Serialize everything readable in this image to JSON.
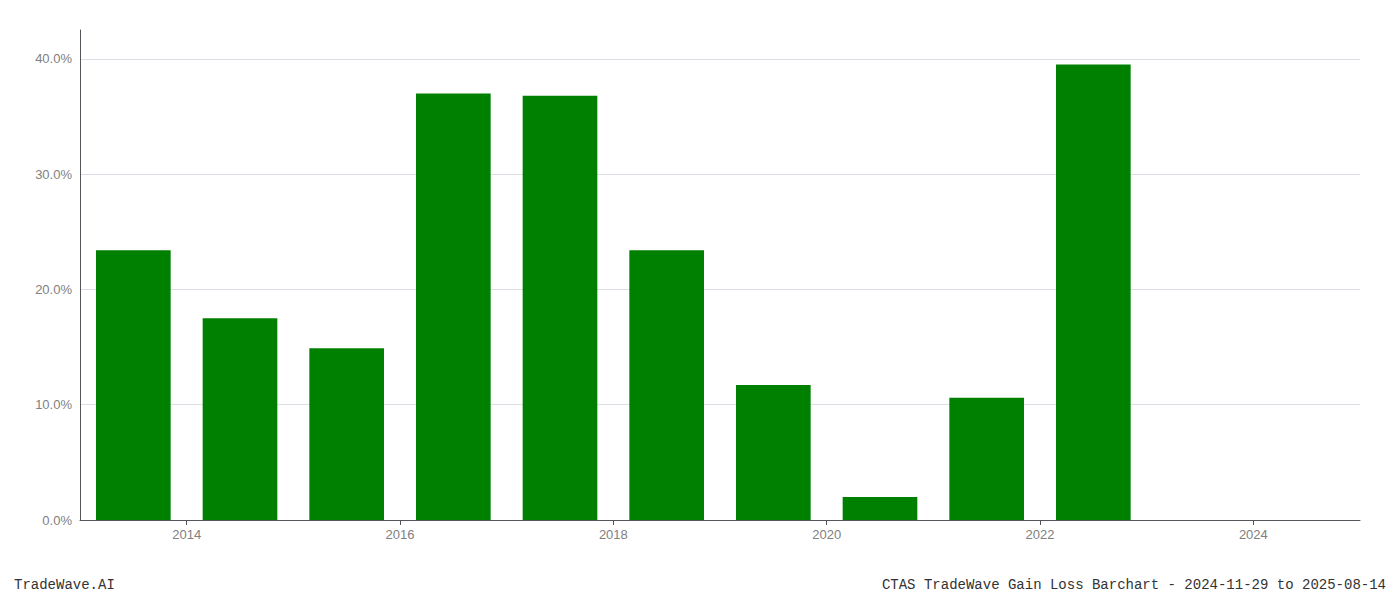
{
  "chart_data": {
    "type": "bar",
    "x": [
      2013.5,
      2014.5,
      2015.5,
      2016.5,
      2017.5,
      2018.5,
      2019.5,
      2020.5,
      2021.5,
      2022.5,
      2023.5
    ],
    "values": [
      0.234,
      0.175,
      0.149,
      0.37,
      0.368,
      0.234,
      0.117,
      0.02,
      0.106,
      0.395,
      0.0
    ],
    "color": "#008000",
    "xlim": [
      2013.0,
      2025.0
    ],
    "xticks": [
      2014,
      2016,
      2018,
      2020,
      2022,
      2024
    ],
    "ylim": [
      0,
      0.425
    ],
    "yticks": [
      {
        "value": 0.0,
        "label": "0.0%"
      },
      {
        "value": 0.1,
        "label": "10.0%"
      },
      {
        "value": 0.2,
        "label": "20.0%"
      },
      {
        "value": 0.3,
        "label": "30.0%"
      },
      {
        "value": 0.4,
        "label": "40.0%"
      }
    ],
    "grid": true,
    "annotations": [
      "TradeWave.AI",
      "CTAS TradeWave Gain Loss Barchart - 2024-11-29 to 2025-08-14"
    ]
  }
}
